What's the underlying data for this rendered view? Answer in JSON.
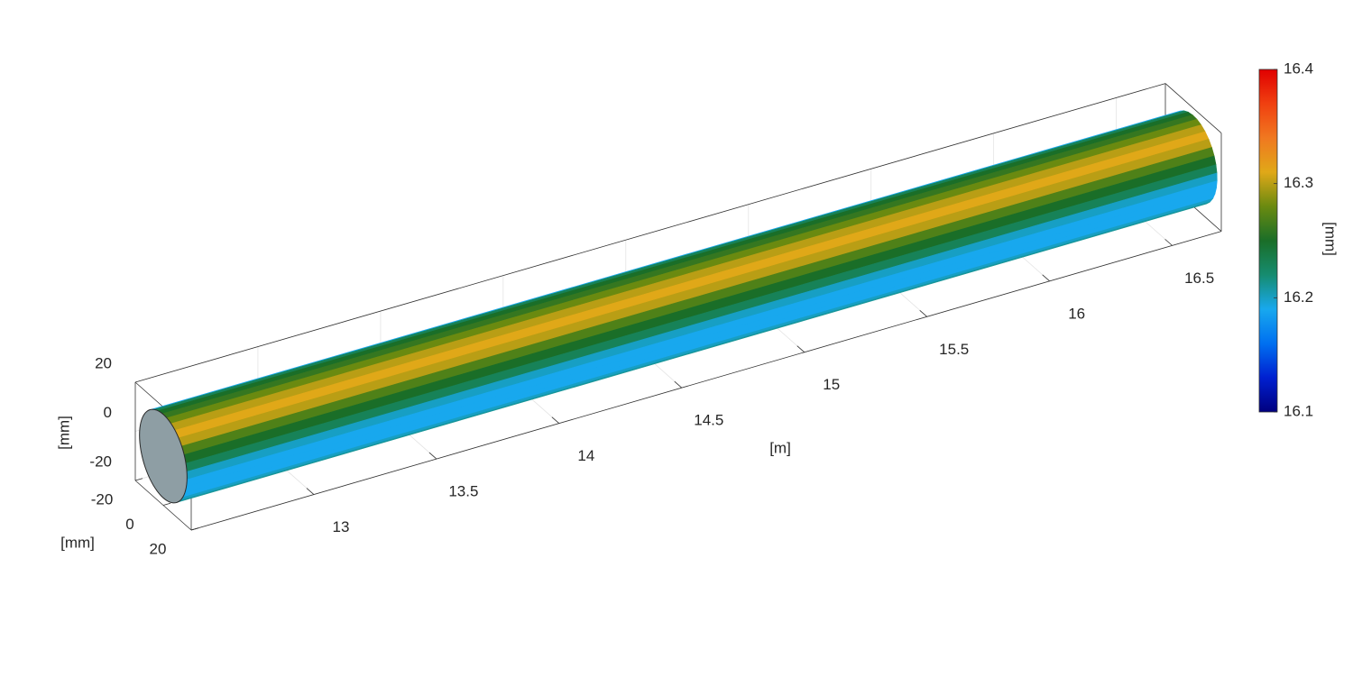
{
  "chart_data": {
    "type": "surface3d",
    "xlabel": "[m]",
    "ylabel": "[mm]",
    "zlabel": "[mm]",
    "colorbar_label": "[mm]",
    "xlim": [
      12.5,
      16.7
    ],
    "xticks": [
      13,
      13.5,
      14,
      14.5,
      15,
      15.5,
      16,
      16.5
    ],
    "ylim": [
      -20,
      20
    ],
    "yticks": [
      -20,
      0,
      20
    ],
    "zlim": [
      -20,
      20
    ],
    "zticks": [
      -20,
      0,
      20
    ],
    "clim": [
      16.1,
      16.4
    ],
    "cticks": [
      16.1,
      16.2,
      16.3,
      16.4
    ],
    "colormap": [
      "#00007f",
      "#0020d0",
      "#0070f0",
      "#18a8ee",
      "#168c70",
      "#1a6e28",
      "#6a8a10",
      "#e0a818",
      "#f07820",
      "#f04010",
      "#e00000"
    ],
    "radius": 17,
    "surface_values": [
      16.19,
      16.23,
      16.25,
      16.26,
      16.28,
      16.3,
      16.31,
      16.3,
      16.27,
      16.25,
      16.23,
      16.2,
      16.19,
      16.19,
      16.19,
      16.2,
      16.21
    ],
    "grid": true
  }
}
